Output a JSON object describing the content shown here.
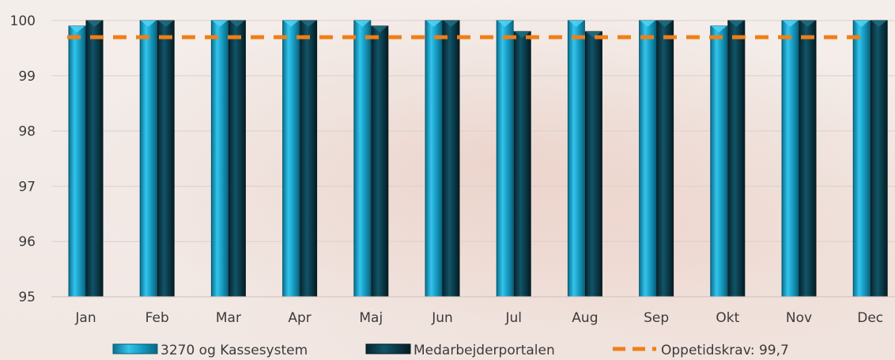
{
  "chart_data": {
    "type": "bar",
    "title": "",
    "xlabel": "",
    "ylabel": "",
    "categories": [
      "Jan",
      "Feb",
      "Mar",
      "Apr",
      "Maj",
      "Jun",
      "Jul",
      "Aug",
      "Sep",
      "Okt",
      "Nov",
      "Dec"
    ],
    "series": [
      {
        "name": "3270 og Kassesystem",
        "color": "#1a9ec4",
        "values": [
          99.9,
          100,
          100,
          100,
          100,
          100,
          100,
          100,
          100,
          99.9,
          100,
          100
        ]
      },
      {
        "name": "Medarbejderportalen",
        "color": "#0b3f4f",
        "values": [
          100,
          100,
          100,
          100,
          99.9,
          100,
          99.8,
          99.8,
          100,
          100,
          100,
          100
        ]
      }
    ],
    "reference_line": {
      "name": "Oppetidskrav: 99,7",
      "value": 99.7,
      "color": "#f07f17",
      "style": "dashed"
    },
    "ylim": [
      95,
      100
    ],
    "yticks": [
      "95",
      "96",
      "97",
      "98",
      "99",
      "100"
    ],
    "grid": true,
    "legend_position": "bottom"
  }
}
